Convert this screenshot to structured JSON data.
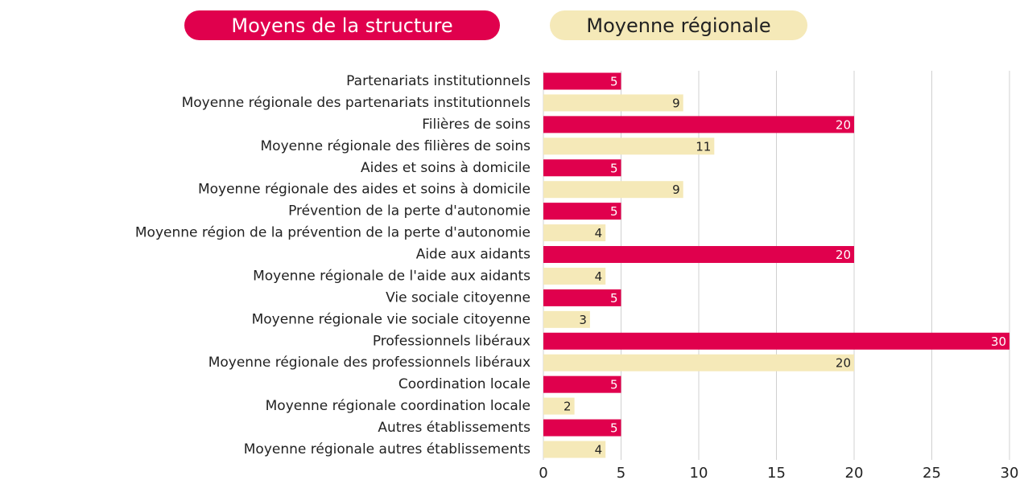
{
  "chart_data": {
    "type": "bar",
    "orientation": "horizontal",
    "categories": [
      "Partenariats institutionnels",
      "Moyenne régionale des partenariats institutionnels",
      "Filières de soins",
      "Moyenne régionale des filières de soins",
      "Aides et soins à domicile",
      "Moyenne régionale des aides et soins à domicile",
      "Prévention de la perte d'autonomie",
      "Moyenne région de la prévention de la perte d'autonomie",
      "Aide aux aidants",
      "Moyenne régionale de l'aide aux aidants",
      "Vie sociale citoyenne",
      "Moyenne régionale vie sociale citoyenne",
      "Professionnels libéraux",
      "Moyenne régionale des professionnels libéraux",
      "Coordination locale",
      "Moyenne régionale coordination locale",
      "Autres établissements",
      "Moyenne régionale autres établissements"
    ],
    "series": [
      {
        "name": "Moyens de la structure",
        "color": "#e0004d",
        "label_color": "#ffffff",
        "values": [
          5,
          null,
          20,
          null,
          5,
          null,
          5,
          null,
          20,
          null,
          5,
          null,
          30,
          null,
          5,
          null,
          5,
          null
        ]
      },
      {
        "name": "Moyenne régionale",
        "color": "#f5e9b8",
        "label_color": "#222222",
        "values": [
          null,
          9,
          null,
          11,
          null,
          9,
          null,
          4,
          null,
          4,
          null,
          3,
          null,
          20,
          null,
          2,
          null,
          4
        ]
      }
    ],
    "xlim": [
      0,
      30
    ],
    "xticks": [
      0,
      5,
      10,
      15,
      20,
      25,
      30
    ],
    "grid": true
  }
}
